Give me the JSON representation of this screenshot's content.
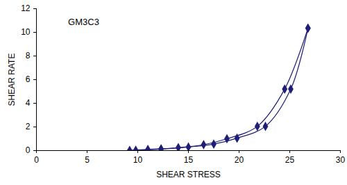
{
  "chart_data": {
    "type": "scatter",
    "x_label": "SHEAR STRESS",
    "y_label": "SHEAR RATE",
    "annotation": "GM3C3",
    "series": [
      {
        "color": "#1f1f78",
        "marker": "diamond",
        "line_style": "solid",
        "x": [
          9.2,
          11.0,
          12.3,
          14.0,
          16.5,
          18.8,
          21.8,
          24.5,
          26.8
        ],
        "values": [
          0.02,
          0.1,
          0.15,
          0.25,
          0.5,
          1.0,
          2.05,
          5.2,
          10.35
        ]
      },
      {
        "color": "#1f1f78",
        "marker": "diamond",
        "line_style": "solid",
        "x": [
          26.8,
          25.1,
          22.6,
          19.8,
          17.5,
          15.0,
          12.3,
          9.8
        ],
        "values": [
          10.35,
          5.2,
          2.05,
          1.05,
          0.55,
          0.3,
          0.12,
          0.03
        ]
      }
    ],
    "xlim": [
      0,
      30
    ],
    "xticks": [
      0,
      5,
      10,
      15,
      20,
      25,
      30
    ],
    "ylim": [
      0,
      12
    ],
    "yticks": [
      0,
      2,
      4,
      6,
      8,
      10,
      12
    ],
    "grid": false
  }
}
